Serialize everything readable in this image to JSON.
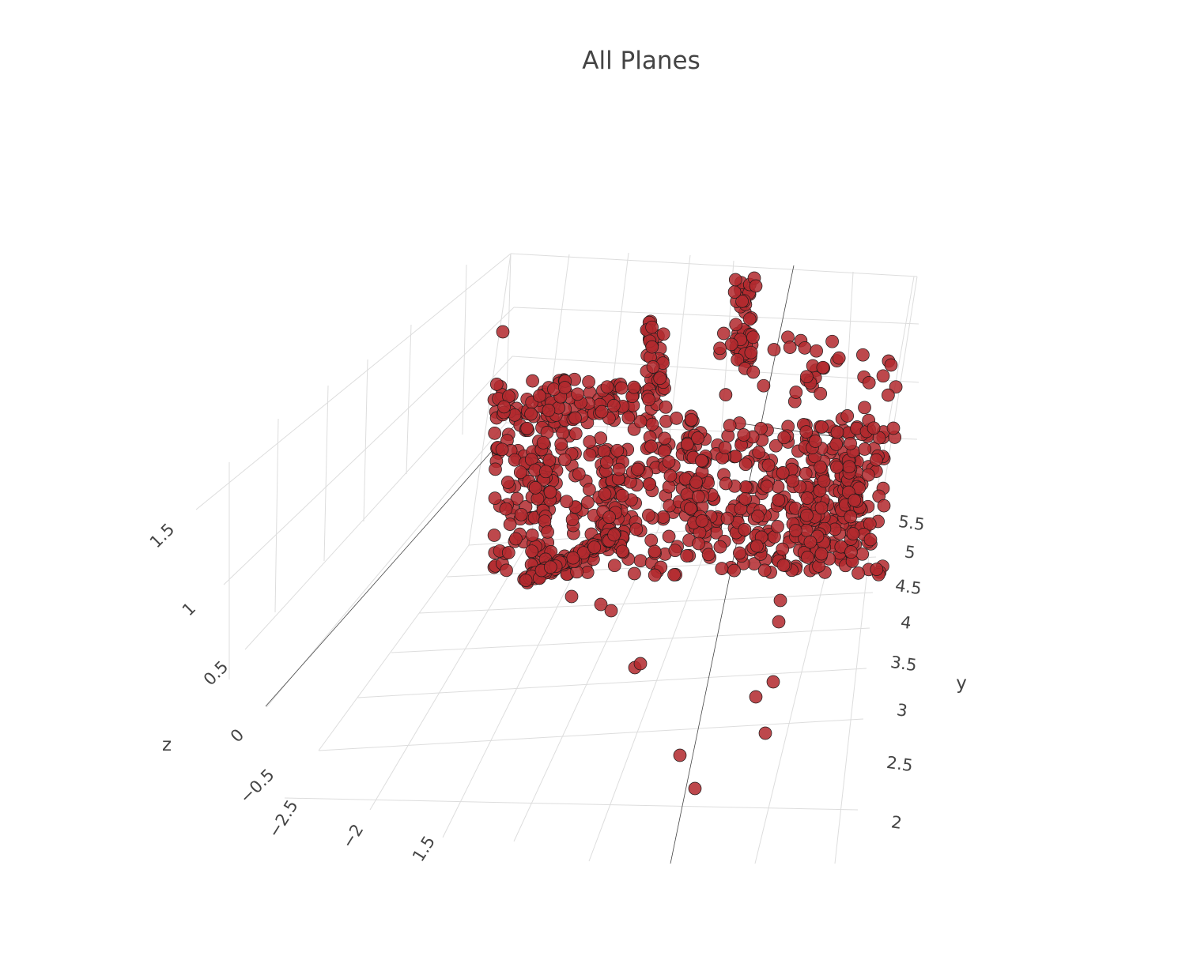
{
  "chart_data": {
    "type": "scatter",
    "title": "All Planes",
    "x_axis": {
      "label": "",
      "ticks": [
        "−2.5",
        "−2",
        "1.5"
      ]
    },
    "y_axis": {
      "label": "y",
      "ticks": [
        "2",
        "2.5",
        "3",
        "3.5",
        "4",
        "4.5",
        "5",
        "5.5"
      ]
    },
    "z_axis": {
      "label": "z",
      "ticks": [
        "−0.5",
        "0",
        "0.5",
        "1",
        "1.5"
      ]
    },
    "series": [
      {
        "marker_color": "#b22a2e",
        "marker_outline": "#1a1a1a"
      }
    ],
    "data_note_points": "Dense 3D point cloud; values not individually recoverable"
  }
}
